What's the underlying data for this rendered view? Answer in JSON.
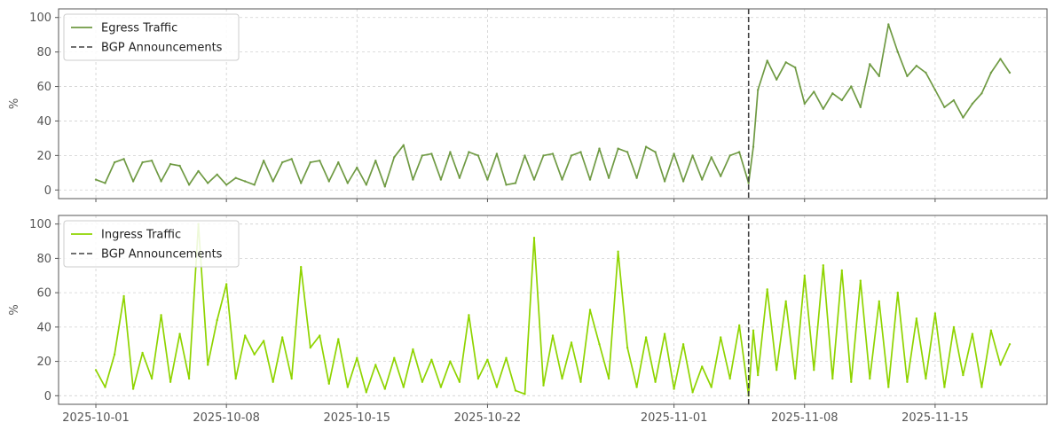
{
  "chart_data": [
    {
      "type": "line",
      "ylabel": "%",
      "ylim": [
        -5,
        105
      ],
      "yticks": [
        "0",
        "20",
        "40",
        "60",
        "80",
        "100"
      ],
      "grid": true,
      "legend_position": "upper-left",
      "legend_entries": [
        "Egress Traffic",
        "BGP Announcements"
      ],
      "vline": {
        "name": "BGP Announcements",
        "x": "2025-11-05",
        "style": "dashed",
        "color": "#404040"
      },
      "series": [
        {
          "name": "Egress Traffic",
          "color": "#6f9a43",
          "points": [
            [
              "2025-10-01",
              6
            ],
            [
              "2025-10-01T12:00",
              4
            ],
            [
              "2025-10-02",
              16
            ],
            [
              "2025-10-02T12:00",
              18
            ],
            [
              "2025-10-03",
              5
            ],
            [
              "2025-10-03T12:00",
              16
            ],
            [
              "2025-10-04",
              17
            ],
            [
              "2025-10-04T12:00",
              5
            ],
            [
              "2025-10-05",
              15
            ],
            [
              "2025-10-05T12:00",
              14
            ],
            [
              "2025-10-06",
              3
            ],
            [
              "2025-10-06T12:00",
              11
            ],
            [
              "2025-10-07",
              4
            ],
            [
              "2025-10-07T12:00",
              9
            ],
            [
              "2025-10-08",
              3
            ],
            [
              "2025-10-08T12:00",
              7
            ],
            [
              "2025-10-09",
              5
            ],
            [
              "2025-10-09T12:00",
              3
            ],
            [
              "2025-10-10",
              17
            ],
            [
              "2025-10-10T12:00",
              5
            ],
            [
              "2025-10-11",
              16
            ],
            [
              "2025-10-11T12:00",
              18
            ],
            [
              "2025-10-12",
              4
            ],
            [
              "2025-10-12T12:00",
              16
            ],
            [
              "2025-10-13",
              17
            ],
            [
              "2025-10-13T12:00",
              5
            ],
            [
              "2025-10-14",
              16
            ],
            [
              "2025-10-14T12:00",
              4
            ],
            [
              "2025-10-15",
              13
            ],
            [
              "2025-10-15T12:00",
              3
            ],
            [
              "2025-10-16",
              17
            ],
            [
              "2025-10-16T12:00",
              2
            ],
            [
              "2025-10-17",
              19
            ],
            [
              "2025-10-17T12:00",
              26
            ],
            [
              "2025-10-18",
              6
            ],
            [
              "2025-10-18T12:00",
              20
            ],
            [
              "2025-10-19",
              21
            ],
            [
              "2025-10-19T12:00",
              6
            ],
            [
              "2025-10-20",
              22
            ],
            [
              "2025-10-20T12:00",
              7
            ],
            [
              "2025-10-21",
              22
            ],
            [
              "2025-10-21T12:00",
              20
            ],
            [
              "2025-10-22",
              6
            ],
            [
              "2025-10-22T12:00",
              21
            ],
            [
              "2025-10-23",
              3
            ],
            [
              "2025-10-23T12:00",
              4
            ],
            [
              "2025-10-24",
              20
            ],
            [
              "2025-10-24T12:00",
              6
            ],
            [
              "2025-10-25",
              20
            ],
            [
              "2025-10-25T12:00",
              21
            ],
            [
              "2025-10-26",
              6
            ],
            [
              "2025-10-26T12:00",
              20
            ],
            [
              "2025-10-27",
              22
            ],
            [
              "2025-10-27T12:00",
              6
            ],
            [
              "2025-10-28",
              24
            ],
            [
              "2025-10-28T12:00",
              7
            ],
            [
              "2025-10-29",
              24
            ],
            [
              "2025-10-29T12:00",
              22
            ],
            [
              "2025-10-30",
              7
            ],
            [
              "2025-10-30T12:00",
              25
            ],
            [
              "2025-10-31",
              22
            ],
            [
              "2025-10-31T12:00",
              5
            ],
            [
              "2025-11-01",
              21
            ],
            [
              "2025-11-01T12:00",
              5
            ],
            [
              "2025-11-02",
              20
            ],
            [
              "2025-11-02T12:00",
              6
            ],
            [
              "2025-11-03",
              19
            ],
            [
              "2025-11-03T12:00",
              8
            ],
            [
              "2025-11-04",
              20
            ],
            [
              "2025-11-04T12:00",
              22
            ],
            [
              "2025-11-05",
              4
            ],
            [
              "2025-11-05T06:00",
              25
            ],
            [
              "2025-11-05T12:00",
              58
            ],
            [
              "2025-11-06",
              75
            ],
            [
              "2025-11-06T12:00",
              64
            ],
            [
              "2025-11-07",
              74
            ],
            [
              "2025-11-07T12:00",
              71
            ],
            [
              "2025-11-08",
              50
            ],
            [
              "2025-11-08T12:00",
              57
            ],
            [
              "2025-11-09",
              47
            ],
            [
              "2025-11-09T12:00",
              56
            ],
            [
              "2025-11-10",
              52
            ],
            [
              "2025-11-10T12:00",
              60
            ],
            [
              "2025-11-11",
              48
            ],
            [
              "2025-11-11T12:00",
              73
            ],
            [
              "2025-11-12",
              66
            ],
            [
              "2025-11-12T12:00",
              96
            ],
            [
              "2025-11-13",
              80
            ],
            [
              "2025-11-13T12:00",
              66
            ],
            [
              "2025-11-14",
              72
            ],
            [
              "2025-11-14T12:00",
              68
            ],
            [
              "2025-11-15",
              58
            ],
            [
              "2025-11-15T12:00",
              48
            ],
            [
              "2025-11-16",
              52
            ],
            [
              "2025-11-16T12:00",
              42
            ],
            [
              "2025-11-17",
              50
            ],
            [
              "2025-11-17T12:00",
              56
            ],
            [
              "2025-11-18",
              68
            ],
            [
              "2025-11-18T12:00",
              76
            ],
            [
              "2025-11-19",
              68
            ]
          ]
        }
      ]
    },
    {
      "type": "line",
      "ylabel": "%",
      "ylim": [
        -5,
        105
      ],
      "yticks": [
        "0",
        "20",
        "40",
        "60",
        "80",
        "100"
      ],
      "grid": true,
      "legend_position": "upper-left",
      "legend_entries": [
        "Ingress Traffic",
        "BGP Announcements"
      ],
      "vline": {
        "name": "BGP Announcements",
        "x": "2025-11-05",
        "style": "dashed",
        "color": "#404040"
      },
      "series": [
        {
          "name": "Ingress Traffic",
          "color": "#8fd400",
          "points": [
            [
              "2025-10-01",
              15
            ],
            [
              "2025-10-01T12:00",
              5
            ],
            [
              "2025-10-02",
              24
            ],
            [
              "2025-10-02T12:00",
              58
            ],
            [
              "2025-10-03",
              4
            ],
            [
              "2025-10-03T12:00",
              25
            ],
            [
              "2025-10-04",
              10
            ],
            [
              "2025-10-04T12:00",
              47
            ],
            [
              "2025-10-05",
              8
            ],
            [
              "2025-10-05T12:00",
              36
            ],
            [
              "2025-10-06",
              10
            ],
            [
              "2025-10-06T12:00",
              100
            ],
            [
              "2025-10-07",
              18
            ],
            [
              "2025-10-07T12:00",
              44
            ],
            [
              "2025-10-08",
              65
            ],
            [
              "2025-10-08T12:00",
              10
            ],
            [
              "2025-10-09",
              35
            ],
            [
              "2025-10-09T12:00",
              24
            ],
            [
              "2025-10-10",
              32
            ],
            [
              "2025-10-10T12:00",
              8
            ],
            [
              "2025-10-11",
              34
            ],
            [
              "2025-10-11T12:00",
              10
            ],
            [
              "2025-10-12",
              75
            ],
            [
              "2025-10-12T12:00",
              28
            ],
            [
              "2025-10-13",
              35
            ],
            [
              "2025-10-13T12:00",
              7
            ],
            [
              "2025-10-14",
              33
            ],
            [
              "2025-10-14T12:00",
              5
            ],
            [
              "2025-10-15",
              22
            ],
            [
              "2025-10-15T12:00",
              2
            ],
            [
              "2025-10-16",
              18
            ],
            [
              "2025-10-16T12:00",
              4
            ],
            [
              "2025-10-17",
              22
            ],
            [
              "2025-10-17T12:00",
              5
            ],
            [
              "2025-10-18",
              27
            ],
            [
              "2025-10-18T12:00",
              8
            ],
            [
              "2025-10-19",
              21
            ],
            [
              "2025-10-19T12:00",
              5
            ],
            [
              "2025-10-20",
              20
            ],
            [
              "2025-10-20T12:00",
              8
            ],
            [
              "2025-10-21",
              47
            ],
            [
              "2025-10-21T12:00",
              10
            ],
            [
              "2025-10-22",
              21
            ],
            [
              "2025-10-22T12:00",
              5
            ],
            [
              "2025-10-23",
              22
            ],
            [
              "2025-10-23T12:00",
              3
            ],
            [
              "2025-10-24",
              1
            ],
            [
              "2025-10-24T12:00",
              92
            ],
            [
              "2025-10-25",
              6
            ],
            [
              "2025-10-25T12:00",
              35
            ],
            [
              "2025-10-26",
              10
            ],
            [
              "2025-10-26T12:00",
              31
            ],
            [
              "2025-10-27",
              8
            ],
            [
              "2025-10-27T12:00",
              50
            ],
            [
              "2025-10-28",
              30
            ],
            [
              "2025-10-28T12:00",
              10
            ],
            [
              "2025-10-29",
              84
            ],
            [
              "2025-10-29T12:00",
              28
            ],
            [
              "2025-10-30",
              5
            ],
            [
              "2025-10-30T12:00",
              34
            ],
            [
              "2025-10-31",
              8
            ],
            [
              "2025-10-31T12:00",
              36
            ],
            [
              "2025-11-01",
              4
            ],
            [
              "2025-11-01T12:00",
              30
            ],
            [
              "2025-11-02",
              2
            ],
            [
              "2025-11-02T12:00",
              17
            ],
            [
              "2025-11-03",
              5
            ],
            [
              "2025-11-03T12:00",
              34
            ],
            [
              "2025-11-04",
              10
            ],
            [
              "2025-11-04T12:00",
              41
            ],
            [
              "2025-11-05",
              0
            ],
            [
              "2025-11-05T06:00",
              38
            ],
            [
              "2025-11-05T12:00",
              12
            ],
            [
              "2025-11-06",
              62
            ],
            [
              "2025-11-06T12:00",
              15
            ],
            [
              "2025-11-07",
              55
            ],
            [
              "2025-11-07T12:00",
              10
            ],
            [
              "2025-11-08",
              70
            ],
            [
              "2025-11-08T12:00",
              15
            ],
            [
              "2025-11-09",
              76
            ],
            [
              "2025-11-09T12:00",
              10
            ],
            [
              "2025-11-10",
              73
            ],
            [
              "2025-11-10T12:00",
              8
            ],
            [
              "2025-11-11",
              67
            ],
            [
              "2025-11-11T12:00",
              10
            ],
            [
              "2025-11-12",
              55
            ],
            [
              "2025-11-12T12:00",
              5
            ],
            [
              "2025-11-13",
              60
            ],
            [
              "2025-11-13T12:00",
              8
            ],
            [
              "2025-11-14",
              45
            ],
            [
              "2025-11-14T12:00",
              10
            ],
            [
              "2025-11-15",
              48
            ],
            [
              "2025-11-15T12:00",
              5
            ],
            [
              "2025-11-16",
              40
            ],
            [
              "2025-11-16T12:00",
              12
            ],
            [
              "2025-11-17",
              36
            ],
            [
              "2025-11-17T12:00",
              5
            ],
            [
              "2025-11-18",
              38
            ],
            [
              "2025-11-18T12:00",
              18
            ],
            [
              "2025-11-19",
              30
            ]
          ]
        }
      ]
    }
  ],
  "x_axis": {
    "range": [
      "2025-09-29",
      "2025-11-21"
    ],
    "tick_labels": [
      "2025-10-01",
      "2025-10-08",
      "2025-10-15",
      "2025-10-22",
      "2025-11-01",
      "2025-11-08",
      "2025-11-15"
    ]
  },
  "colors": {
    "grid": "#d0d0d0",
    "axes_frame": "#555555",
    "tick_text": "#555555",
    "legend_border": "#cccccc"
  }
}
